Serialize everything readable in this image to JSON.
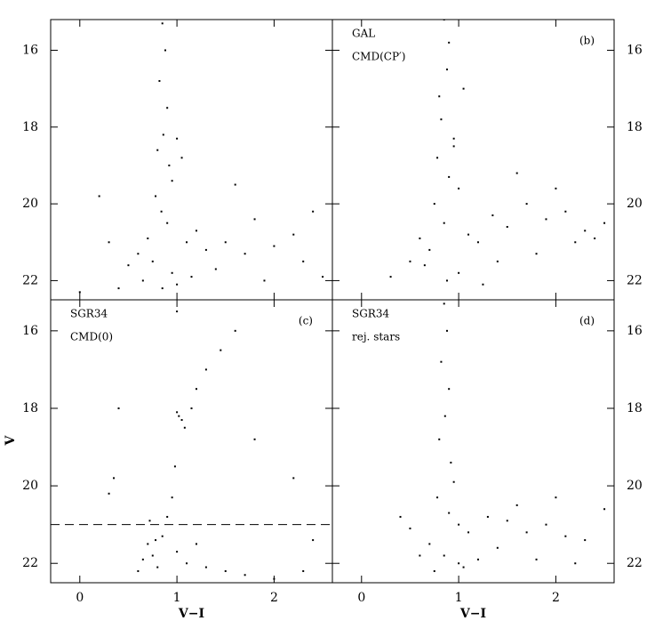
{
  "chart_data": [
    {
      "type": "scatter",
      "color": "#000000",
      "xlim": [
        -0.3,
        2.6
      ],
      "ylim": [
        22.5,
        15.2
      ],
      "xticks": [
        0,
        1,
        2
      ],
      "yticks": [
        16,
        18,
        20,
        22
      ],
      "x": [
        0.85,
        0.88,
        0.82,
        0.9,
        0.86,
        0.8,
        0.92,
        0.95,
        1.0,
        1.05,
        0.78,
        0.84,
        0.9,
        0.7,
        1.1,
        1.2,
        0.6,
        0.75,
        0.95,
        1.3,
        1.5,
        0.5,
        0.65,
        0.85,
        1.0,
        1.15,
        1.4,
        1.7,
        2.0,
        2.3,
        0.4,
        0.3,
        1.8,
        2.2,
        2.5,
        0.2,
        1.6,
        1.9,
        0.0,
        2.4
      ],
      "y": [
        15.3,
        16,
        16.8,
        17.5,
        18.2,
        18.6,
        19,
        19.4,
        18.3,
        18.8,
        19.8,
        20.2,
        20.5,
        20.9,
        21,
        20.7,
        21.3,
        21.5,
        21.8,
        21.2,
        21,
        21.6,
        22,
        22.2,
        22.1,
        21.9,
        21.7,
        21.3,
        21.1,
        21.5,
        22.2,
        21,
        20.4,
        20.8,
        21.9,
        19.8,
        19.5,
        22,
        22.3,
        20.2
      ]
    },
    {
      "type": "scatter",
      "color": "#000000",
      "xlim": [
        -0.3,
        2.6
      ],
      "ylim": [
        22.5,
        15.2
      ],
      "xticks": [
        0,
        1,
        2
      ],
      "yticks": [
        16,
        18,
        20,
        22
      ],
      "labels": [
        "GAL",
        "CMD(CP′)"
      ],
      "tag": "(b)",
      "x": [
        0.85,
        0.9,
        0.88,
        0.8,
        0.82,
        0.95,
        0.78,
        0.9,
        1.0,
        0.75,
        0.85,
        1.1,
        1.2,
        1.35,
        1.5,
        1.7,
        1.9,
        2.1,
        2.3,
        2.5,
        0.7,
        0.65,
        1.0,
        1.4,
        1.8,
        2.2,
        0.95,
        1.05,
        0.6,
        1.6,
        2.0,
        0.5,
        0.88,
        1.25,
        2.4,
        0.3
      ],
      "y": [
        15.2,
        15.8,
        16.5,
        17.2,
        17.8,
        18.3,
        18.8,
        19.3,
        19.6,
        20,
        20.5,
        20.8,
        21,
        20.3,
        20.6,
        20,
        20.4,
        20.2,
        20.7,
        20.5,
        21.2,
        21.6,
        21.8,
        21.5,
        21.3,
        21,
        18.5,
        17,
        20.9,
        19.2,
        19.6,
        21.5,
        22,
        22.1,
        20.9,
        21.9
      ]
    },
    {
      "type": "scatter",
      "color": "#000000",
      "xlim": [
        -0.3,
        2.6
      ],
      "ylim": [
        22.5,
        15.2
      ],
      "xticks": [
        0,
        1,
        2
      ],
      "yticks": [
        16,
        18,
        20,
        22
      ],
      "labels": [
        "SGR34",
        "CMD(0)"
      ],
      "tag": "(c)",
      "hline": 21,
      "xlabel": "V−I",
      "ylabel": "V",
      "x": [
        0.7,
        0.75,
        0.8,
        0.65,
        0.85,
        0.6,
        0.72,
        0.9,
        0.78,
        1.0,
        1.1,
        1.3,
        1.5,
        1.7,
        2.0,
        2.3,
        1.2,
        0.95,
        0.98,
        1.02,
        1.05,
        1.0,
        1.08,
        1.15,
        1.2,
        1.3,
        1.45,
        1.6,
        1.0,
        0.4,
        0.35,
        2.2,
        2.4,
        0.3,
        1.8
      ],
      "y": [
        21.5,
        21.8,
        22.1,
        21.9,
        21.3,
        22.2,
        20.9,
        20.8,
        21.4,
        21.7,
        22,
        22.1,
        22.2,
        22.3,
        22.4,
        22.2,
        21.5,
        20.3,
        19.5,
        18.2,
        18.3,
        18.1,
        18.5,
        18,
        17.5,
        17,
        16.5,
        16,
        15.5,
        18,
        19.8,
        19.8,
        21.4,
        20.2,
        18.8
      ]
    },
    {
      "type": "scatter",
      "color": "#000000",
      "xlim": [
        -0.3,
        2.6
      ],
      "ylim": [
        22.5,
        15.2
      ],
      "xticks": [
        0,
        1,
        2
      ],
      "yticks": [
        16,
        18,
        20,
        22
      ],
      "labels": [
        "SGR34",
        "rej. stars"
      ],
      "tag": "(d)",
      "xlabel": "V−I",
      "x": [
        0.85,
        0.88,
        0.82,
        0.9,
        0.86,
        0.8,
        0.92,
        0.95,
        0.78,
        0.9,
        1.0,
        1.1,
        1.3,
        1.5,
        1.7,
        1.9,
        2.1,
        2.3,
        2.5,
        0.7,
        0.6,
        1.0,
        1.2,
        1.4,
        1.8,
        2.2,
        0.5,
        0.4,
        1.6,
        2.0,
        0.85,
        0.75,
        1.05
      ],
      "y": [
        15.3,
        16,
        16.8,
        17.5,
        18.2,
        18.8,
        19.4,
        19.9,
        20.3,
        20.7,
        21,
        21.2,
        20.8,
        20.9,
        21.2,
        21,
        21.3,
        21.4,
        20.6,
        21.5,
        21.8,
        22,
        21.9,
        21.6,
        21.9,
        22,
        21.1,
        20.8,
        20.5,
        20.3,
        21.8,
        22.2,
        22.1
      ]
    }
  ]
}
